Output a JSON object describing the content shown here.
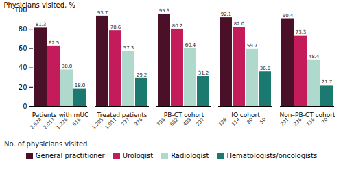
{
  "chart_data": {
    "type": "bar",
    "categories": [
      "Patients with mUC",
      "Treated patients",
      "PB-CT cohort",
      "IO cohort",
      "Non–PB-CT cohort"
    ],
    "series": [
      {
        "name": "General practitioner",
        "color": "#4a1028",
        "values": [
          81.3,
          93.7,
          95.3,
          92.1,
          90.4
        ],
        "n_labels": [
          "2,524",
          "1,205",
          "786",
          "128",
          "291"
        ]
      },
      {
        "name": "Urologist",
        "color": "#c41c5a",
        "values": [
          62.5,
          78.6,
          80.2,
          82.0,
          73.3
        ],
        "value_labels": [
          "62.5",
          "78.6",
          "80.2",
          "82.0",
          "73.3"
        ],
        "n_labels": [
          "2,017",
          "1,011",
          "662",
          "114",
          "236"
        ]
      },
      {
        "name": "Radiologist",
        "color": "#aed9cc",
        "values": [
          38.0,
          57.3,
          60.4,
          59.7,
          48.4
        ],
        "value_labels": [
          "38.0",
          "57.3",
          "60.4",
          "59.7",
          "48.4"
        ],
        "n_labels": [
          "1,226",
          "737",
          "488",
          "80",
          "156"
        ]
      },
      {
        "name": "Hematologists/oncologists",
        "color": "#1a7a70",
        "values": [
          18.0,
          29.2,
          31.2,
          36.0,
          21.7
        ],
        "value_labels": [
          "18.0",
          "29.2",
          "31.2",
          "36.0",
          "21.7"
        ],
        "n_labels": [
          "516",
          "376",
          "237",
          "50",
          "70"
        ]
      }
    ],
    "ylabel": "Physicians visited, %",
    "annotations": [
      "No. of physicians visited"
    ],
    "ylim": [
      0,
      100
    ],
    "yticks": [
      0,
      20,
      40,
      60,
      80,
      100
    ],
    "data_labels": true,
    "grid": false,
    "legend": "bottom"
  }
}
